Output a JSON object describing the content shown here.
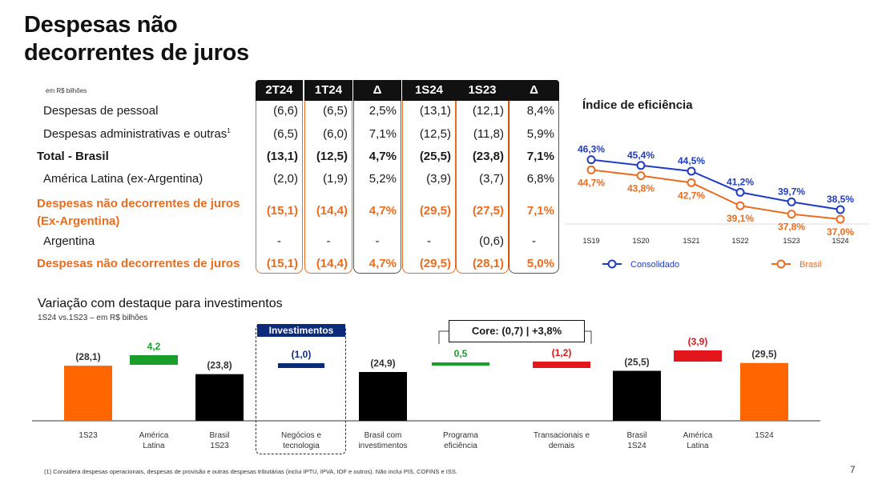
{
  "page": {
    "title_line1": "Despesas não",
    "title_line2": "decorrentes de juros",
    "unit_label": "em R$ bilhões",
    "footnote": "(1) Considera despesas operacionais, despesas de provisão e outras despesas tributárias (inclui IPTU, IPVA, IOF e outros). Não inclui PIS, COFINS e ISS.",
    "page_number": "7"
  },
  "table": {
    "headers": [
      "2T24",
      "1T24",
      "Δ",
      "1S24",
      "1S23",
      "Δ"
    ],
    "rows": [
      {
        "label": "Despesas de pessoal",
        "sup": "",
        "style": "ind",
        "values": [
          "(6,6)",
          "(6,5)",
          "2,5%",
          "(13,1)",
          "(12,1)",
          "8,4%"
        ]
      },
      {
        "label": "Despesas administrativas e outras",
        "sup": "1",
        "style": "ind",
        "values": [
          "(6,5)",
          "(6,0)",
          "7,1%",
          "(12,5)",
          "(11,8)",
          "5,9%"
        ]
      },
      {
        "label": "Total - Brasil",
        "sup": "",
        "style": "bold",
        "values": [
          "(13,1)",
          "(12,5)",
          "4,7%",
          "(25,5)",
          "(23,8)",
          "7,1%"
        ]
      },
      {
        "label": "América Latina (ex-Argentina)",
        "sup": "",
        "style": "ind",
        "values": [
          "(2,0)",
          "(1,9)",
          "5,2%",
          "(3,9)",
          "(3,7)",
          "6,8%"
        ]
      },
      {
        "label": "Despesas não decorrentes de juros",
        "label2": "(Ex-Argentina)",
        "sup": "",
        "style": "orange",
        "values": [
          "(15,1)",
          "(14,4)",
          "4,7%",
          "(29,5)",
          "(27,5)",
          "7,1%"
        ]
      },
      {
        "label": "Argentina",
        "sup": "",
        "style": "ind",
        "values": [
          "-",
          "-",
          "-",
          "-",
          "(0,6)",
          "-"
        ]
      },
      {
        "label": "Despesas não decorrentes de juros",
        "sup": "",
        "style": "orange",
        "values": [
          "(15,1)",
          "(14,4)",
          "4,7%",
          "(29,5)",
          "(28,1)",
          "5,0%"
        ]
      }
    ]
  },
  "efficiency": {
    "title": "Índice de eficiência",
    "legend_consolidado": "Consolidado",
    "legend_brasil": "Brasil"
  },
  "variation": {
    "title": "Variação com destaque para investimentos",
    "subtitle": "1S24 vs.1S23 – em R$ bilhões",
    "investimentos_label": "Investimentos",
    "core_label": "Core: (0,7) | +3,8%"
  },
  "chart_data": [
    {
      "type": "line",
      "title": "Índice de eficiência",
      "x": [
        "1S19",
        "1S20",
        "1S21",
        "1S22",
        "1S23",
        "1S24"
      ],
      "ylim": [
        30,
        50
      ],
      "series": [
        {
          "name": "Consolidado",
          "color": "#1f3cc4",
          "values": [
            46.3,
            45.4,
            44.5,
            41.2,
            39.7,
            38.5
          ],
          "labels": [
            "46,3%",
            "45,4%",
            "44,5%",
            "41,2%",
            "39,7%",
            "38,5%"
          ]
        },
        {
          "name": "Brasil",
          "color": "#ec6c1e",
          "values": [
            44.7,
            43.8,
            42.7,
            39.1,
            37.8,
            37.0
          ],
          "labels": [
            "44,7%",
            "43,8%",
            "42,7%",
            "39,1%",
            "37,8%",
            "37,0%"
          ]
        }
      ],
      "grid": false,
      "legend": "bottom"
    },
    {
      "type": "bar",
      "subtype": "waterfall",
      "title": "Variação com destaque para investimentos",
      "categories": [
        "1S23",
        "América Latina",
        "Brasil 1S23",
        "Negócios e tecnologia",
        "Brasil com investimentos",
        "Programa eficiência",
        "Transacionais e demais",
        "Brasil 1S24",
        "América Latina",
        "1S24"
      ],
      "category_lines": [
        [
          "1S23"
        ],
        [
          "América",
          "Latina"
        ],
        [
          "Brasil",
          "1S23"
        ],
        [
          "Negócios e",
          "tecnologia"
        ],
        [
          "Brasil com",
          "investimentos"
        ],
        [
          "Programa",
          "eficiência"
        ],
        [
          "Transacionais e",
          "demais"
        ],
        [
          "Brasil",
          "1S24"
        ],
        [
          "América",
          "Latina"
        ],
        [
          "1S24"
        ]
      ],
      "values": [
        28.1,
        4.2,
        23.8,
        1.0,
        24.9,
        0.5,
        1.2,
        25.5,
        3.9,
        29.5
      ],
      "labels": [
        "(28,1)",
        "4,2",
        "(23,8)",
        "(1,0)",
        "(24,9)",
        "0,5",
        "(1,2)",
        "(25,5)",
        "(3,9)",
        "(29,5)"
      ],
      "kinds": [
        "total",
        "delta",
        "total",
        "delta",
        "total",
        "delta",
        "delta",
        "total",
        "delta",
        "total"
      ],
      "colors": [
        "#ff6600",
        "#1a9e2a",
        "#000000",
        "#0b2a7a",
        "#000000",
        "#1a9e2a",
        "#e3161b",
        "#000000",
        "#e3161b",
        "#ff6600"
      ],
      "label_colors": [
        "#333333",
        "#1a9e2a",
        "#333333",
        "#0b2a7a",
        "#333333",
        "#1a9e2a",
        "#e3161b",
        "#333333",
        "#e3161b",
        "#333333"
      ]
    }
  ]
}
